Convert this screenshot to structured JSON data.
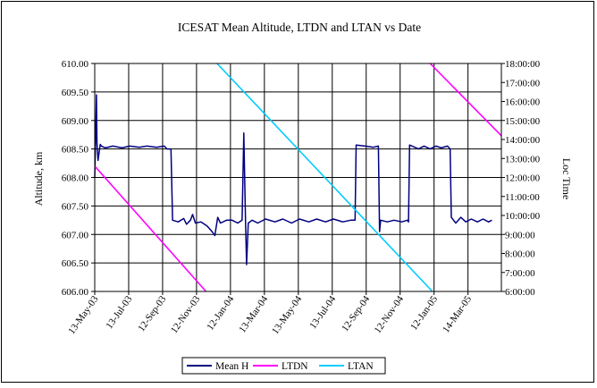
{
  "chart_data": {
    "type": "line",
    "title": "ICESAT Mean Altitude, LTDN and LTAN  vs Date",
    "ylabel": "Altitude, km",
    "y2label": "Loc Time",
    "ylim": [
      606.0,
      610.0
    ],
    "y2lim": [
      6,
      18
    ],
    "y_ticks": [
      "606.00",
      "606.50",
      "607.00",
      "607.50",
      "608.00",
      "608.50",
      "609.00",
      "609.50",
      "610.00"
    ],
    "y2_ticks": [
      "6:00:00",
      "7:00:00",
      "8:00:00",
      "9:00:00",
      "10:00:00",
      "11:00:00",
      "12:00:00",
      "13:00:00",
      "14:00:00",
      "15:00:00",
      "16:00:00",
      "17:00:00",
      "18:00:00"
    ],
    "x_range": [
      "2003-05-13",
      "2005-05-13"
    ],
    "x_ticks": [
      {
        "date": "2003-05-13",
        "label": "13-May-03"
      },
      {
        "date": "2003-07-13",
        "label": "13-Jul-03"
      },
      {
        "date": "2003-09-12",
        "label": "12-Sep-03"
      },
      {
        "date": "2003-11-12",
        "label": "12-Nov-03"
      },
      {
        "date": "2004-01-12",
        "label": "12-Jan-04"
      },
      {
        "date": "2004-03-13",
        "label": "13-Mar-04"
      },
      {
        "date": "2004-05-13",
        "label": "13-May-04"
      },
      {
        "date": "2004-07-13",
        "label": "13-Jul-04"
      },
      {
        "date": "2004-09-12",
        "label": "12-Sep-04"
      },
      {
        "date": "2004-11-12",
        "label": "12-Nov-04"
      },
      {
        "date": "2005-01-12",
        "label": "12-Jan-05"
      },
      {
        "date": "2005-03-14",
        "label": "14-Mar-05"
      }
    ],
    "grid": true,
    "legend_position": "bottom",
    "series": [
      {
        "name": "Mean H",
        "axis": "left",
        "color": "#000080",
        "points": [
          [
            "2003-05-13",
            608.0
          ],
          [
            "2003-05-14",
            608.4
          ],
          [
            "2003-05-16",
            609.45
          ],
          [
            "2003-05-17",
            608.6
          ],
          [
            "2003-05-19",
            608.3
          ],
          [
            "2003-05-21",
            608.45
          ],
          [
            "2003-05-23",
            608.58
          ],
          [
            "2003-05-25",
            608.55
          ],
          [
            "2003-06-01",
            608.52
          ],
          [
            "2003-06-15",
            608.55
          ],
          [
            "2003-07-01",
            608.52
          ],
          [
            "2003-07-15",
            608.55
          ],
          [
            "2003-08-01",
            608.53
          ],
          [
            "2003-08-15",
            608.55
          ],
          [
            "2003-09-01",
            608.53
          ],
          [
            "2003-09-15",
            608.55
          ],
          [
            "2003-09-20",
            608.5
          ],
          [
            "2003-09-27",
            608.5
          ],
          [
            "2003-09-30",
            607.25
          ],
          [
            "2003-10-10",
            607.22
          ],
          [
            "2003-10-20",
            607.28
          ],
          [
            "2003-10-25",
            607.18
          ],
          [
            "2003-11-01",
            607.25
          ],
          [
            "2003-11-05",
            607.35
          ],
          [
            "2003-11-10",
            607.2
          ],
          [
            "2003-11-20",
            607.22
          ],
          [
            "2003-12-01",
            607.15
          ],
          [
            "2003-12-10",
            607.05
          ],
          [
            "2003-12-15",
            606.98
          ],
          [
            "2003-12-20",
            607.3
          ],
          [
            "2003-12-25",
            607.2
          ],
          [
            "2004-01-05",
            607.25
          ],
          [
            "2004-01-15",
            607.25
          ],
          [
            "2004-01-25",
            607.2
          ],
          [
            "2004-02-02",
            607.25
          ],
          [
            "2004-02-05",
            608.78
          ],
          [
            "2004-02-08",
            607.25
          ],
          [
            "2004-02-10",
            606.47
          ],
          [
            "2004-02-13",
            607.2
          ],
          [
            "2004-02-20",
            607.25
          ],
          [
            "2004-03-01",
            607.2
          ],
          [
            "2004-03-15",
            607.27
          ],
          [
            "2004-04-01",
            607.22
          ],
          [
            "2004-04-15",
            607.27
          ],
          [
            "2004-05-01",
            607.2
          ],
          [
            "2004-05-15",
            607.27
          ],
          [
            "2004-06-01",
            607.22
          ],
          [
            "2004-06-15",
            607.27
          ],
          [
            "2004-07-01",
            607.22
          ],
          [
            "2004-07-15",
            607.27
          ],
          [
            "2004-08-01",
            607.22
          ],
          [
            "2004-08-15",
            607.25
          ],
          [
            "2004-08-23",
            607.25
          ],
          [
            "2004-08-25",
            608.57
          ],
          [
            "2004-09-10",
            608.55
          ],
          [
            "2004-09-25",
            608.53
          ],
          [
            "2004-10-04",
            608.55
          ],
          [
            "2004-10-06",
            607.05
          ],
          [
            "2004-10-08",
            607.25
          ],
          [
            "2004-10-20",
            607.22
          ],
          [
            "2004-11-01",
            607.25
          ],
          [
            "2004-11-15",
            607.22
          ],
          [
            "2004-11-25",
            607.25
          ],
          [
            "2004-11-27",
            607.22
          ],
          [
            "2004-11-29",
            608.57
          ],
          [
            "2004-12-15",
            608.5
          ],
          [
            "2004-12-25",
            608.55
          ],
          [
            "2005-01-05",
            608.5
          ],
          [
            "2005-01-15",
            608.55
          ],
          [
            "2005-01-25",
            608.52
          ],
          [
            "2005-02-05",
            608.55
          ],
          [
            "2005-02-10",
            608.5
          ],
          [
            "2005-02-12",
            607.3
          ],
          [
            "2005-02-20",
            607.2
          ],
          [
            "2005-03-01",
            607.3
          ],
          [
            "2005-03-10",
            607.22
          ],
          [
            "2005-03-20",
            607.27
          ],
          [
            "2005-03-31",
            607.22
          ],
          [
            "2005-04-10",
            607.27
          ],
          [
            "2005-04-20",
            607.22
          ],
          [
            "2005-04-26",
            607.25
          ]
        ]
      },
      {
        "name": "LTDN",
        "axis": "right",
        "color": "#ff00ff",
        "segments": [
          [
            [
              "2003-05-13",
              12.6
            ],
            [
              "2003-11-29",
              6.0
            ]
          ],
          [
            [
              "2005-01-05",
              18.0
            ],
            [
              "2005-05-13",
              14.2
            ]
          ]
        ]
      },
      {
        "name": "LTAN",
        "axis": "right",
        "color": "#00ccff",
        "segments": [
          [
            [
              "2003-12-19",
              18.0
            ],
            [
              "2005-01-09",
              6.0
            ]
          ]
        ]
      }
    ]
  }
}
